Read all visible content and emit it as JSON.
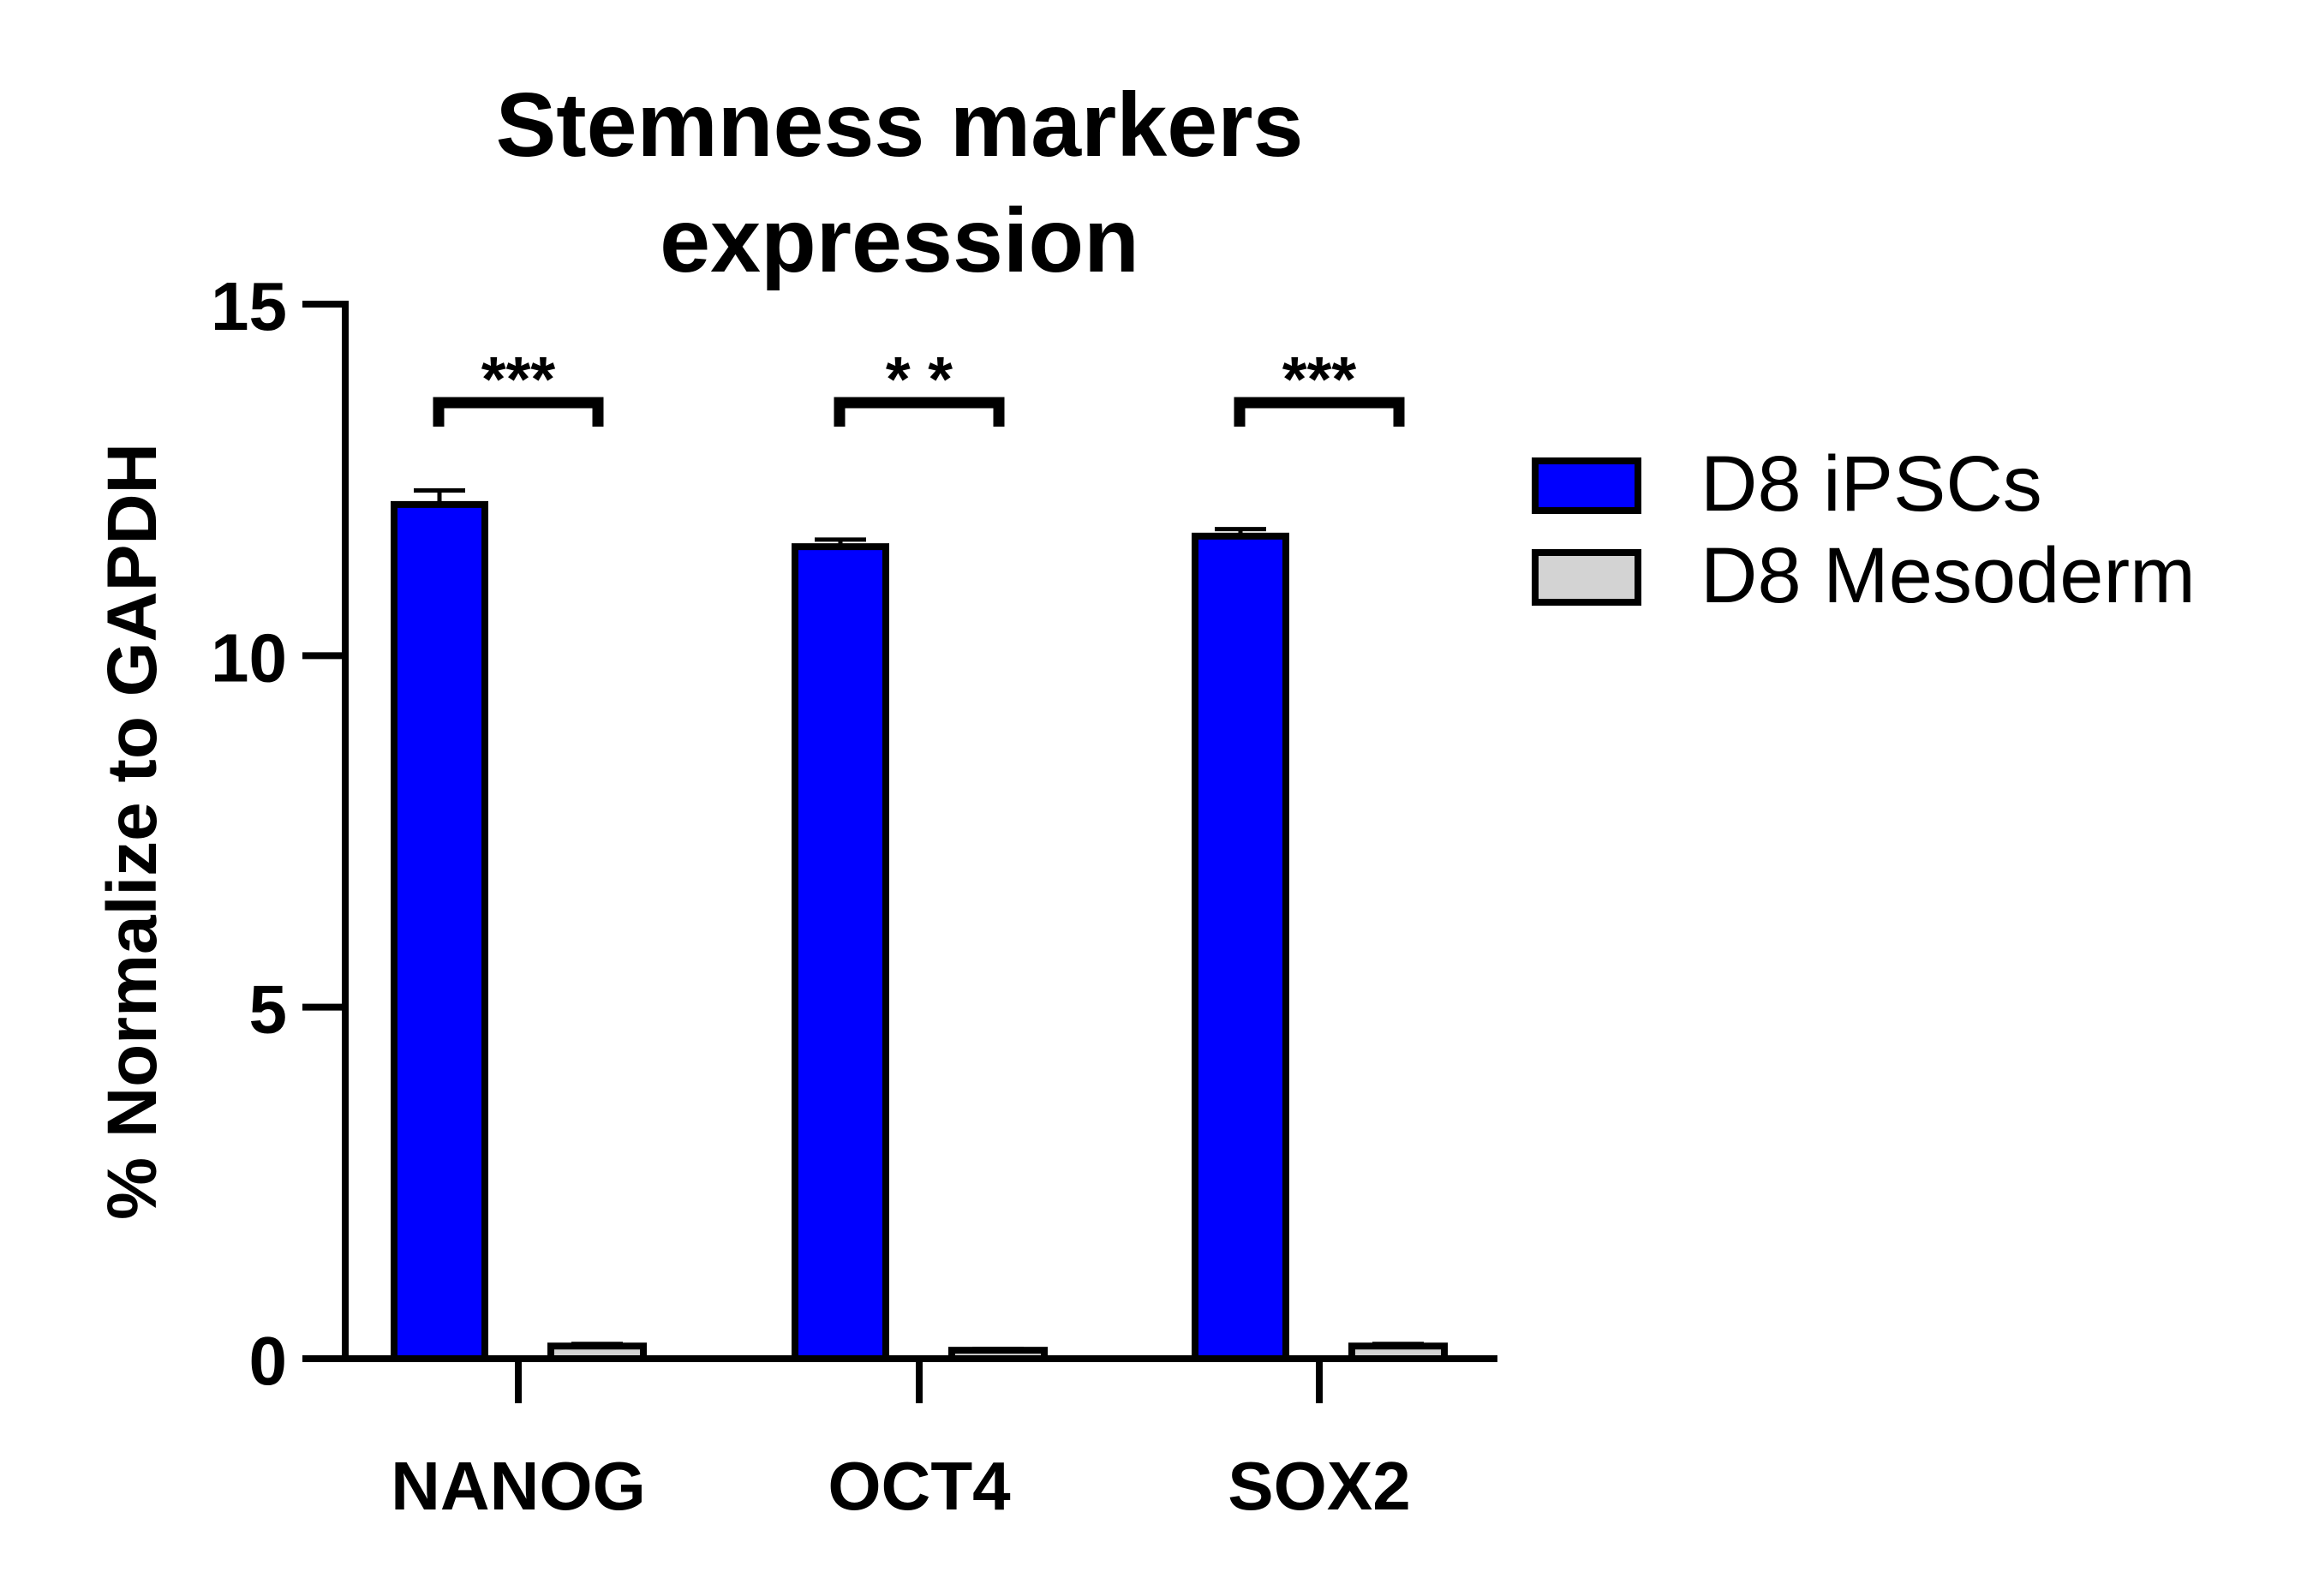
{
  "chart_data": {
    "type": "bar",
    "title_lines": [
      "Stemness markers",
      "expression"
    ],
    "xlabel": "",
    "ylabel": "% Normalize to GAPDH",
    "ylim": [
      0,
      15
    ],
    "yticks": [
      0,
      5,
      10,
      15
    ],
    "categories": [
      "NANOG",
      "OCT4",
      "SOX2"
    ],
    "series": [
      {
        "name": "D8 iPSCs",
        "color": "#0000ff",
        "values": [
          12.15,
          11.55,
          11.7
        ],
        "errors": [
          0.2,
          0.1,
          0.1
        ]
      },
      {
        "name": "D8 Mesoderm",
        "color": "#d3d3d3",
        "values": [
          0.18,
          0.12,
          0.18
        ],
        "errors": [
          0.03,
          0.02,
          0.03
        ]
      }
    ],
    "significance": [
      "***",
      "* *",
      "***"
    ],
    "legend_position": "right",
    "grid": false
  }
}
